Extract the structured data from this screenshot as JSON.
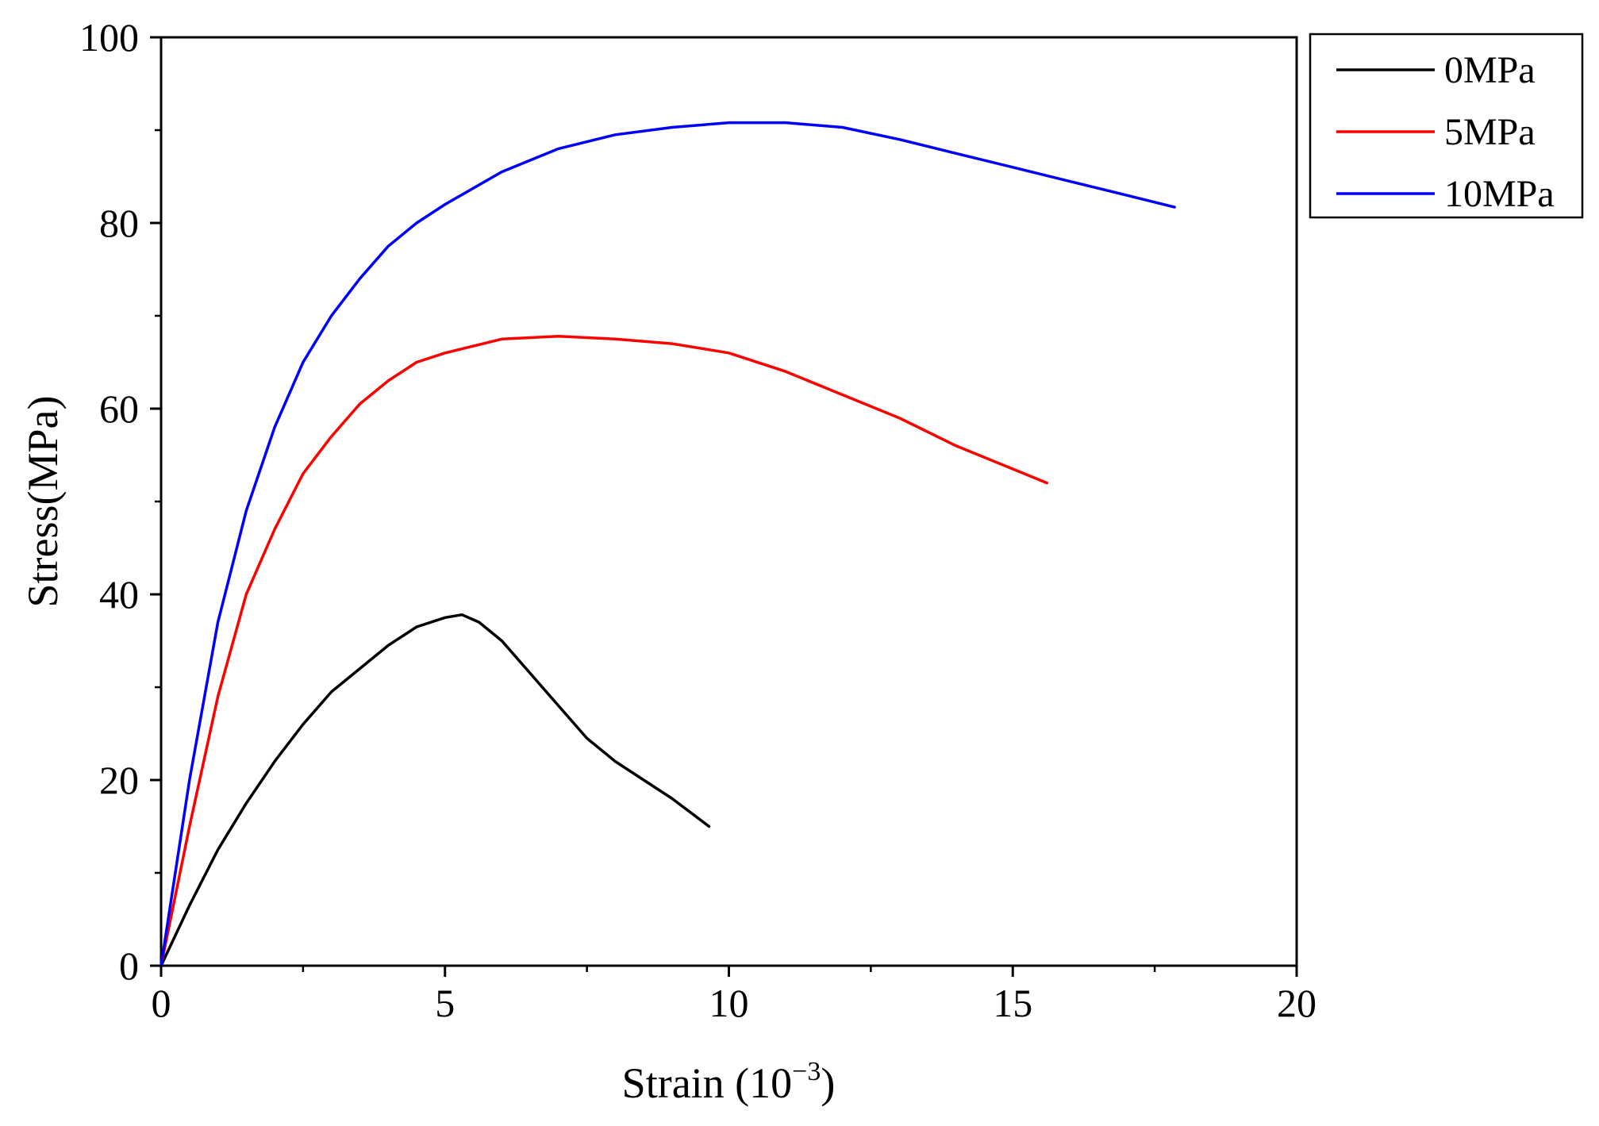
{
  "chart_data": {
    "type": "line",
    "title": "",
    "xlabel": "Strain (10",
    "xlabel_exponent": "−3",
    "xlabel_suffix": ")",
    "ylabel": "Stress(MPa)",
    "xlim": [
      0,
      20
    ],
    "ylim": [
      0,
      100
    ],
    "xticks": [
      0,
      5,
      10,
      15,
      20
    ],
    "xtick_labels": [
      "0",
      "5",
      "10",
      "15",
      "20"
    ],
    "yticks": [
      0,
      20,
      40,
      60,
      80,
      100
    ],
    "ytick_labels": [
      "0",
      "20",
      "40",
      "60",
      "80",
      "100"
    ],
    "grid": false,
    "legend_position": "outside-top-right",
    "series": [
      {
        "name": "0MPa",
        "color": "#000000",
        "x": [
          0,
          0.5,
          1.0,
          1.5,
          2.0,
          2.5,
          3.0,
          3.5,
          4.0,
          4.5,
          5.0,
          5.3,
          5.6,
          6.0,
          6.5,
          7.0,
          7.5,
          8.0,
          8.5,
          9.0,
          9.65
        ],
        "y": [
          0,
          6.5,
          12.5,
          17.5,
          22,
          26,
          29.5,
          32,
          34.5,
          36.5,
          37.5,
          37.8,
          37.0,
          35.0,
          31.5,
          28.0,
          24.5,
          22.0,
          20.0,
          18.0,
          15.0
        ]
      },
      {
        "name": "5MPa",
        "color": "#ff0000",
        "x": [
          0,
          0.5,
          1.0,
          1.5,
          2.0,
          2.5,
          3.0,
          3.5,
          4.0,
          4.5,
          5.0,
          6.0,
          7.0,
          8.0,
          9.0,
          10.0,
          11.0,
          12.0,
          13.0,
          14.0,
          15.0,
          15.6
        ],
        "y": [
          0,
          15,
          29,
          40,
          47,
          53,
          57,
          60.5,
          63,
          65,
          66,
          67.5,
          67.8,
          67.5,
          67.0,
          66.0,
          64.0,
          61.5,
          59.0,
          56.0,
          53.5,
          52.0
        ]
      },
      {
        "name": "10MPa",
        "color": "#0000ff",
        "x": [
          0,
          0.5,
          1.0,
          1.5,
          2.0,
          2.5,
          3.0,
          3.5,
          4.0,
          4.5,
          5.0,
          6.0,
          7.0,
          8.0,
          9.0,
          10.0,
          11.0,
          12.0,
          13.0,
          14.0,
          15.0,
          16.0,
          17.0,
          17.85
        ],
        "y": [
          0,
          20,
          37,
          49,
          58,
          65,
          70,
          74,
          77.5,
          80,
          82,
          85.5,
          88.0,
          89.5,
          90.3,
          90.8,
          90.8,
          90.3,
          89.0,
          87.5,
          86.0,
          84.5,
          83.0,
          81.7
        ]
      }
    ]
  }
}
